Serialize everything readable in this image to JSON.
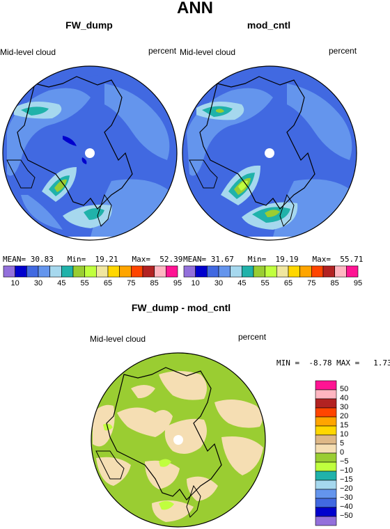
{
  "title": "ANN",
  "panels": [
    {
      "title": "FW_dump",
      "variable": "Mid-level cloud",
      "units": "percent",
      "stats": {
        "mean_label": "MEAN=",
        "mean": "30.83",
        "min_label": "Min=",
        "min": "19.21",
        "max_label": "Max=",
        "max": "52.39"
      }
    },
    {
      "title": "mod_cntl",
      "variable": "Mid-level cloud",
      "units": "percent",
      "stats": {
        "mean_label": "MEAN=",
        "mean": "31.67",
        "min_label": "Min=",
        "min": "19.19",
        "max_label": "Max=",
        "max": "55.71"
      }
    },
    {
      "title": "FW_dump - mod_cntl",
      "variable": "Mid-level cloud",
      "units": "percent",
      "stats_text": "MIN =  -8.78 MAX =   1.73"
    }
  ],
  "colorbar_abs": {
    "colors": [
      "#9370db",
      "#0000cd",
      "#4169e1",
      "#6495ed",
      "#a6d8ee",
      "#20b2aa",
      "#9acd32",
      "#c0ff3e",
      "#f0e6a0",
      "#ffd700",
      "#ffa500",
      "#ff4500",
      "#b22222",
      "#ffb6c1",
      "#ff1493"
    ],
    "tick_labels": [
      "10",
      "30",
      "45",
      "55",
      "65",
      "75",
      "85",
      "95"
    ]
  },
  "colorbar_diff": {
    "colors_top_to_bottom": [
      "#ff1493",
      "#ffb6c1",
      "#b22222",
      "#ff4500",
      "#ffa500",
      "#ffd700",
      "#deb887",
      "#f5deb3",
      "#9acd32",
      "#c0ff3e",
      "#20b2aa",
      "#a6d8ee",
      "#6495ed",
      "#4169e1",
      "#0000cd",
      "#9370db"
    ],
    "tick_labels_top_to_bottom": [
      "50",
      "40",
      "30",
      "20",
      "15",
      "10",
      "5",
      "0",
      "−5",
      "−10",
      "−15",
      "−20",
      "−30",
      "−40",
      "−50"
    ]
  },
  "chart_data": [
    {
      "type": "heatmap",
      "title": "FW_dump",
      "subtitle": "Mid-level cloud",
      "units": "percent",
      "projection": "north polar stereographic",
      "mean": 30.83,
      "min": 19.21,
      "max": 52.39,
      "levels": [
        10,
        20,
        30,
        35,
        40,
        45,
        50,
        55,
        60,
        65,
        70,
        75,
        80,
        85,
        90,
        95
      ]
    },
    {
      "type": "heatmap",
      "title": "mod_cntl",
      "subtitle": "Mid-level cloud",
      "units": "percent",
      "projection": "north polar stereographic",
      "mean": 31.67,
      "min": 19.19,
      "max": 55.71,
      "levels": [
        10,
        20,
        30,
        35,
        40,
        45,
        50,
        55,
        60,
        65,
        70,
        75,
        80,
        85,
        90,
        95
      ]
    },
    {
      "type": "heatmap",
      "title": "FW_dump - mod_cntl",
      "subtitle": "Mid-level cloud",
      "units": "percent",
      "projection": "north polar stereographic",
      "min": -8.78,
      "max": 1.73,
      "levels": [
        -50,
        -40,
        -30,
        -20,
        -15,
        -10,
        -5,
        0,
        5,
        10,
        15,
        20,
        30,
        40,
        50
      ]
    }
  ]
}
